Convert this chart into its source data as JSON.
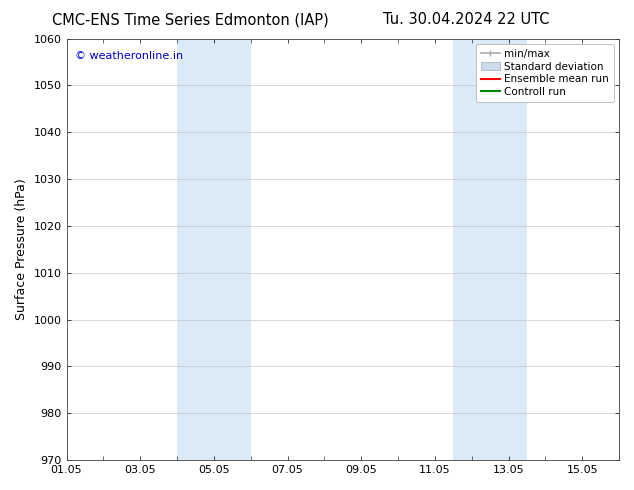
{
  "title_left": "CMC-ENS Time Series Edmonton (IAP)",
  "title_right": "Tu. 30.04.2024 22 UTC",
  "ylabel": "Surface Pressure (hPa)",
  "ylim": [
    970,
    1060
  ],
  "yticks": [
    970,
    980,
    990,
    1000,
    1010,
    1020,
    1030,
    1040,
    1050,
    1060
  ],
  "xtick_labels": [
    "01.05",
    "03.05",
    "05.05",
    "07.05",
    "09.05",
    "11.05",
    "13.05",
    "15.05"
  ],
  "xtick_positions": [
    0,
    2,
    4,
    6,
    8,
    10,
    12,
    14
  ],
  "xlim": [
    0,
    15
  ],
  "shaded_regions": [
    {
      "start": 3.0,
      "end": 5.0,
      "color": "#daeaf7"
    },
    {
      "start": 10.5,
      "end": 12.5,
      "color": "#daeaf7"
    }
  ],
  "watermark": "© weatheronline.in",
  "watermark_color": "#0000cc",
  "legend_labels": [
    "min/max",
    "Standard deviation",
    "Ensemble mean run",
    "Controll run"
  ],
  "legend_colors": [
    "#aaaaaa",
    "#ccdcec",
    "#ff0000",
    "#008800"
  ],
  "bg_color": "#ffffff",
  "grid_color": "#bbbbbb",
  "title_fontsize": 10.5,
  "watermark_fontsize": 8,
  "axis_label_fontsize": 9,
  "tick_fontsize": 8,
  "legend_fontsize": 7.5
}
